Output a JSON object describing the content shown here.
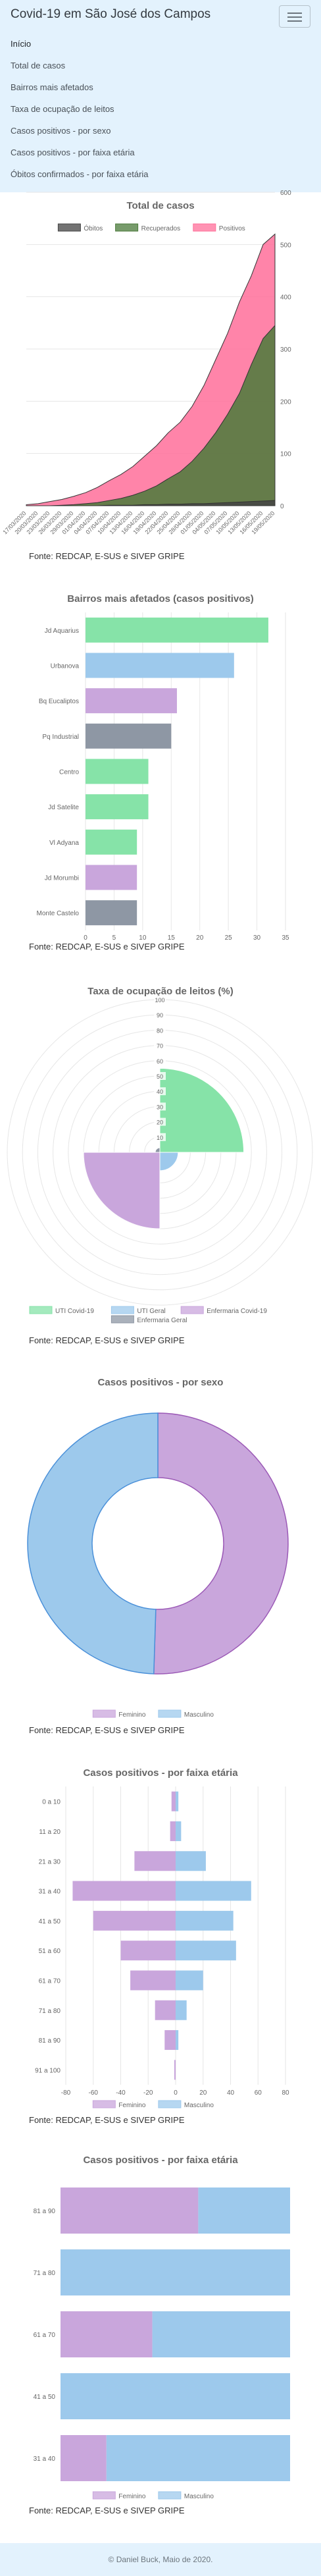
{
  "nav": {
    "brand": "Covid-19 em São José dos Campos",
    "items": [
      {
        "label": "Início"
      },
      {
        "label": "Total de casos"
      },
      {
        "label": "Bairros mais afetados"
      },
      {
        "label": "Taxa de ocupação de leitos"
      },
      {
        "label": "Casos positivos - por sexo"
      },
      {
        "label": "Casos positivos - por faixa etária"
      },
      {
        "label": "Óbitos confirmados - por faixa etária"
      }
    ]
  },
  "source_label": "Fonte: REDCAP, E-SUS e SIVEP GRIPE",
  "footer": "© Daniel Buck, Maio de 2020.",
  "chart_data": [
    {
      "type": "area",
      "title": "Total de casos",
      "x": [
        "17/03/2020",
        "20/03/2020",
        "23/03/2020",
        "26/03/2020",
        "29/03/2020",
        "01/04/2020",
        "04/04/2020",
        "07/04/2020",
        "10/04/2020",
        "13/04/2020",
        "16/04/2020",
        "19/04/2020",
        "22/04/2020",
        "25/04/2020",
        "28/04/2020",
        "01/05/2020",
        "04/05/2020",
        "07/05/2020",
        "10/05/2020",
        "13/05/2020",
        "16/05/2020",
        "19/05/2020"
      ],
      "series": [
        {
          "name": "Óbitos",
          "color": "#444444",
          "values": [
            0,
            0,
            0,
            0,
            0,
            0,
            0,
            1,
            1,
            1,
            2,
            2,
            3,
            3,
            4,
            4,
            5,
            6,
            7,
            8,
            9,
            10
          ]
        },
        {
          "name": "Recuperados",
          "color": "#4a7a3a",
          "values": [
            0,
            0,
            0,
            1,
            2,
            4,
            6,
            10,
            14,
            20,
            28,
            38,
            52,
            65,
            85,
            110,
            140,
            175,
            215,
            270,
            320,
            345
          ]
        },
        {
          "name": "Positivos",
          "color": "#ff6f9a",
          "values": [
            2,
            4,
            8,
            12,
            18,
            25,
            35,
            48,
            60,
            75,
            95,
            115,
            140,
            160,
            190,
            230,
            280,
            330,
            390,
            440,
            500,
            520
          ]
        }
      ],
      "ylim": [
        0,
        600
      ],
      "yticks": [
        "0",
        "100",
        "200",
        "300",
        "400",
        "500",
        "600"
      ],
      "legend": "top"
    },
    {
      "type": "bar",
      "title": "Bairros mais afetados (casos positivos)",
      "categories": [
        "Jd Aquarius",
        "Urbanova",
        "Bq Eucaliptos",
        "Pq Industrial",
        "Centro",
        "Jd Satelite",
        "Vl Adyana",
        "Jd Morumbi",
        "Monte Castelo"
      ],
      "values": [
        32,
        26,
        16,
        15,
        11,
        11,
        9,
        9,
        9
      ],
      "colors": [
        "#86e3a8",
        "#9dc9ec",
        "#c9a6dc",
        "#8e97a4",
        "#86e3a8",
        "#86e3a8",
        "#86e3a8",
        "#c9a6dc",
        "#8e97a4"
      ],
      "xlim": [
        0,
        35
      ],
      "xticks": [
        "0",
        "5",
        "10",
        "15",
        "20",
        "25",
        "30",
        "35"
      ]
    },
    {
      "type": "polar",
      "title": "Taxa de ocupação de leitos (%)",
      "categories": [
        "UTI Covid-19",
        "UTI Geral",
        "Enfermaria Covid-19",
        "Enfermaria Geral"
      ],
      "values": [
        55,
        12,
        50,
        3
      ],
      "colors": [
        "#86e3a8",
        "#9dc9ec",
        "#c9a6dc",
        "#8e97a4"
      ],
      "rlim": [
        0,
        100
      ],
      "rticks": [
        "10",
        "20",
        "30",
        "40",
        "50",
        "60",
        "70",
        "80",
        "90",
        "100"
      ]
    },
    {
      "type": "pie",
      "title": "Casos positivos - por sexo",
      "categories": [
        "Feminino",
        "Masculino"
      ],
      "values": [
        50.5,
        49.5
      ],
      "colors": [
        "#c9a6dc",
        "#9dc9ec"
      ]
    },
    {
      "type": "bar",
      "title": "Casos positivos - por faixa etária",
      "categories": [
        "0 a 10",
        "11 a 20",
        "21 a 30",
        "31 a 40",
        "41 a 50",
        "51 a 60",
        "61 a 70",
        "71 a 80",
        "81 a 90",
        "91 a 100"
      ],
      "series": [
        {
          "name": "Feminino",
          "color": "#c9a6dc",
          "values": [
            -3,
            -4,
            -30,
            -75,
            -60,
            -40,
            -33,
            -15,
            -8,
            -1
          ]
        },
        {
          "name": "Masculino",
          "color": "#9dc9ec",
          "values": [
            2,
            4,
            22,
            55,
            42,
            44,
            20,
            8,
            2,
            0
          ]
        }
      ],
      "xlim": [
        -80,
        80
      ],
      "xticks": [
        "-80",
        "-60",
        "-40",
        "-20",
        "0",
        "20",
        "40",
        "60",
        "80"
      ]
    },
    {
      "type": "bar",
      "title": "Casos positivos - por faixa etária",
      "categories": [
        "81 a 90",
        "71 a 80",
        "61 a 70",
        "41 a 50",
        "31 a 40"
      ],
      "series": [
        {
          "name": "Feminino",
          "color": "#c9a6dc",
          "values": [
            60,
            0,
            40,
            0,
            20
          ]
        },
        {
          "name": "Masculino",
          "color": "#9dc9ec",
          "values": [
            40,
            100,
            60,
            100,
            80
          ]
        }
      ],
      "xlim": [
        0,
        100
      ]
    }
  ]
}
